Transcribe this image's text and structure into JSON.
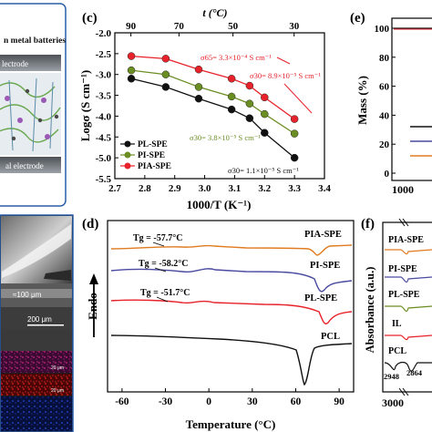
{
  "left_panel_a": {
    "text_top": "n metal batteries",
    "text_electrode_top": "lectrode",
    "text_electrode_bottom": "al electrode"
  },
  "left_panel_b": {
    "scale_1": "≈100 μm",
    "scale_2": "200 μm",
    "scale_3": "20 μm",
    "scale_4": "20 μm"
  },
  "panel_c": {
    "label": "(c)",
    "top_axis_label": "t (°C)",
    "top_ticks": [
      "90",
      "70",
      "50",
      "30"
    ],
    "ylabel": "Logσ (S cm⁻¹)",
    "xlabel": "1000/T (K⁻¹)",
    "annotations": {
      "s65": "σ65= 3.3×10⁻⁴ S cm⁻¹",
      "s30_pia": "σ30= 8.9×10⁻⁵ S cm⁻¹",
      "s30_pi": "σ30= 3.8×10⁻⁵ S cm⁻¹",
      "s30_pl": "σ30= 1.1×10⁻⁵ S cm⁻¹"
    }
  },
  "panel_d": {
    "label": "(d)",
    "ylabel": "Endo",
    "xlabel": "Temperature (°C)",
    "tg_pia": "Tg = -57.7°C",
    "tg_pi": "Tg = -58.2°C",
    "tg_pl": "Tg = -51.7°C",
    "curve_labels": [
      "PIA-SPE",
      "PI-SPE",
      "PL-SPE",
      "PCL"
    ]
  },
  "panel_e": {
    "label": "(e)",
    "ylabel": "Mass (%)",
    "yticks": [
      "100",
      "80",
      "60",
      "40",
      "20",
      "0"
    ],
    "xtick_partial": "1000"
  },
  "panel_f": {
    "label": "(f)",
    "ylabel": "Absorbance (a.u.)",
    "curve_labels": [
      "PIA-SPE",
      "PI-SPE",
      "PL-SPE",
      "IL",
      "PCL"
    ],
    "peak_labels": [
      "2948",
      "2864"
    ],
    "xtick_partial": "3000"
  },
  "colors": {
    "pl": "#111111",
    "pi": "#6b8e23",
    "pia": "#e8222a",
    "pia_dsc": "#e07b20",
    "pi_dsc": "#4a4aa0",
    "pl_dsc": "#e8222a",
    "annot_red": "#e8222a",
    "annot_green": "#6b8e23"
  },
  "chart_data": [
    {
      "type": "line",
      "panel": "c",
      "xlabel": "1000/T (K⁻¹)",
      "ylabel": "Logσ (S cm⁻¹)",
      "xlim": [
        2.7,
        3.4
      ],
      "ylim": [
        -5.5,
        -2.0
      ],
      "xticks": [
        2.7,
        2.8,
        2.9,
        3.0,
        3.1,
        3.2,
        3.3,
        3.4
      ],
      "yticks": [
        -2.0,
        -2.5,
        -3.0,
        -3.5,
        -4.0,
        -4.5,
        -5.0,
        -5.5
      ],
      "legend_position": "bottom-left",
      "series": [
        {
          "name": "PL-SPE",
          "x": [
            2.755,
            2.87,
            2.98,
            3.09,
            3.15,
            3.2,
            3.3
          ],
          "y": [
            -3.1,
            -3.3,
            -3.58,
            -3.84,
            -4.05,
            -4.4,
            -5.0
          ]
        },
        {
          "name": "PI-SPE",
          "x": [
            2.755,
            2.87,
            2.98,
            3.09,
            3.15,
            3.2,
            3.3
          ],
          "y": [
            -2.9,
            -3.0,
            -3.3,
            -3.53,
            -3.7,
            -3.95,
            -4.42
          ]
        },
        {
          "name": "PIA-SPE",
          "x": [
            2.755,
            2.87,
            2.98,
            3.09,
            3.15,
            3.2,
            3.3
          ],
          "y": [
            -2.56,
            -2.62,
            -2.88,
            -3.1,
            -3.27,
            -3.55,
            -4.07
          ]
        }
      ]
    },
    {
      "type": "line",
      "panel": "d",
      "xlabel": "Temperature (°C)",
      "ylabel": "Endo",
      "xlim": [
        -70,
        100
      ],
      "xticks": [
        -60,
        -30,
        0,
        30,
        60,
        90
      ],
      "series": [
        {
          "name": "PIA-SPE"
        },
        {
          "name": "PI-SPE"
        },
        {
          "name": "PL-SPE"
        },
        {
          "name": "PCL"
        }
      ]
    }
  ]
}
